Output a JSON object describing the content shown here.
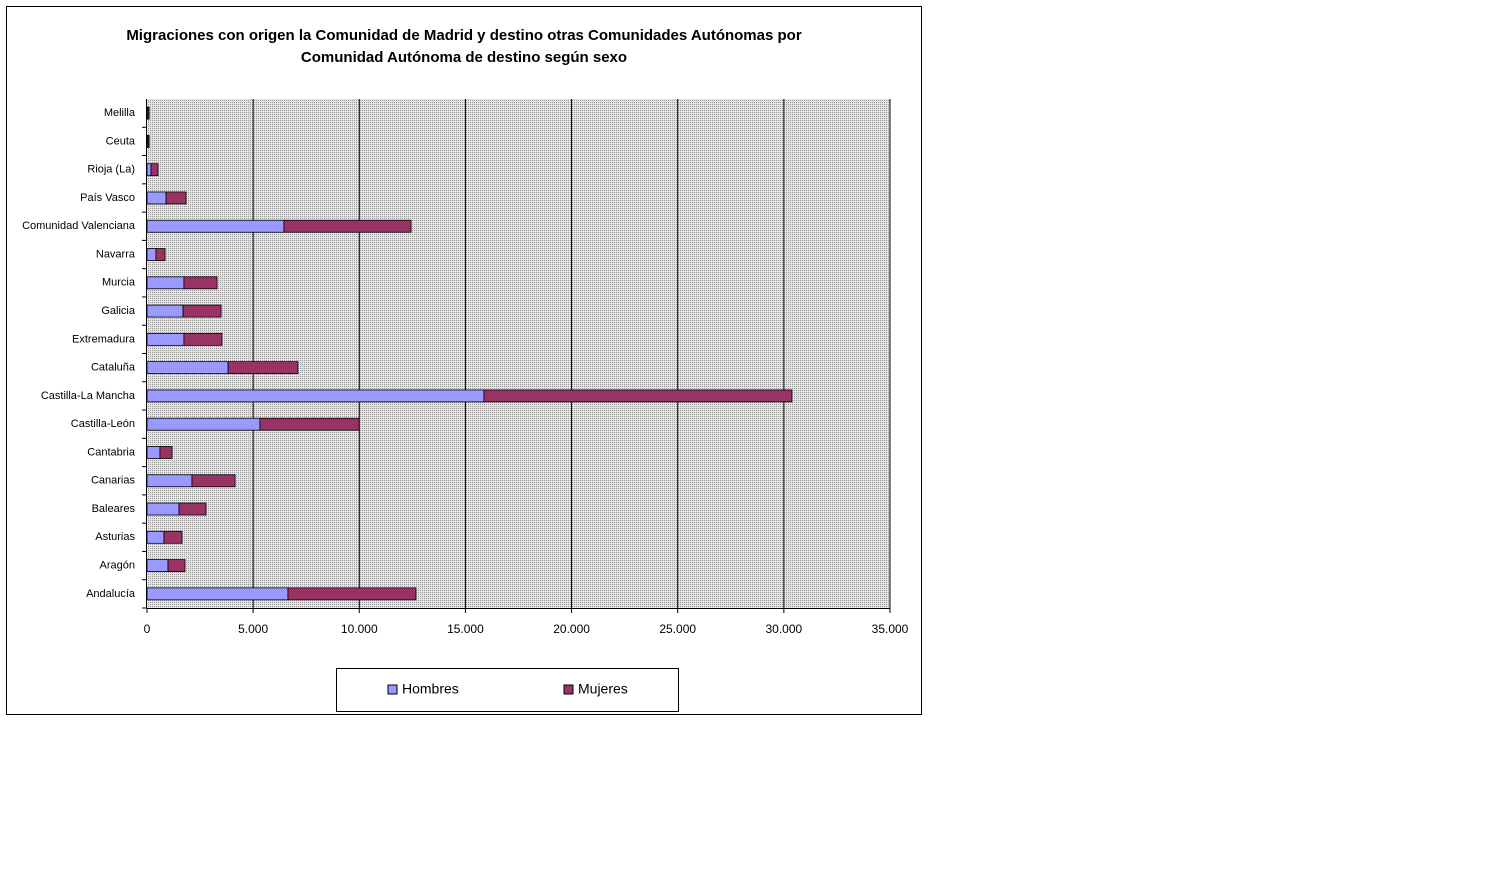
{
  "chart_data": {
    "type": "stacked-barh",
    "title": [
      "Migraciones con origen la Comunidad de Madrid y destino otras Comunidades Autónomas por",
      "Comunidad Autónoma de destino según sexo"
    ],
    "categories": [
      "Andalucía",
      "Aragón",
      "Asturias",
      "Baleares",
      "Canarias",
      "Cantabria",
      "Castilla-León",
      "Castilla-La Mancha",
      "Cataluña",
      "Extremadura",
      "Galicia",
      "Murcia",
      "Navarra",
      "Comunidad Valenciana",
      "País Vasco",
      "Rioja (La)",
      "Ceuta",
      "Melilla"
    ],
    "series": [
      {
        "name": "Hombres",
        "color": "#9999ff",
        "values": [
          6640,
          990,
          800,
          1510,
          2120,
          610,
          5320,
          15870,
          3820,
          1740,
          1700,
          1740,
          420,
          6450,
          900,
          190,
          50,
          50
        ]
      },
      {
        "name": "Mujeres",
        "color": "#993366",
        "values": [
          6030,
          800,
          850,
          1270,
          2030,
          570,
          4670,
          14510,
          3290,
          1790,
          1790,
          1560,
          430,
          5990,
          940,
          330,
          50,
          50
        ]
      }
    ],
    "xlim": [
      0,
      35000
    ],
    "xticks": [
      0,
      {
        "value": 5000,
        "label": "5.000"
      },
      {
        "value": 10000,
        "label": "10.000"
      },
      {
        "value": 15000,
        "label": "15.000"
      },
      {
        "value": 20000,
        "label": "20.000"
      },
      {
        "value": 25000,
        "label": "25.000"
      },
      {
        "value": 30000,
        "label": "30.000"
      },
      {
        "value": 35000,
        "label": "35.000"
      }
    ],
    "grid": true
  }
}
